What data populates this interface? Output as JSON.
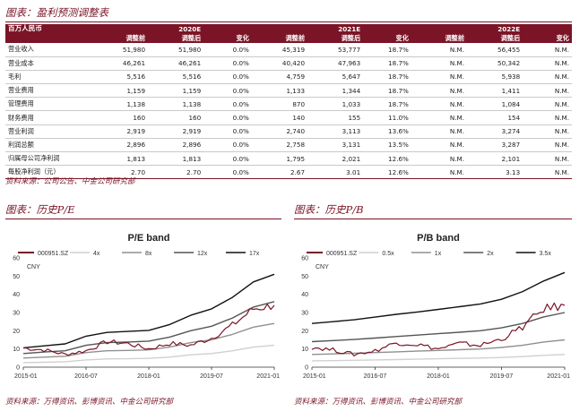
{
  "table_section": {
    "title": "图表：盈利预测调整表",
    "unit_header": "百万人民币",
    "years": [
      "2020E",
      "2021E",
      "2022E"
    ],
    "subheaders": [
      "调整前",
      "调整后",
      "变化",
      "调整前",
      "调整后",
      "变化",
      "调整前",
      "调整后",
      "变化"
    ],
    "rows": [
      {
        "label": "营业收入",
        "values": [
          "51,980",
          "51,980",
          "0.0%",
          "45,319",
          "53,777",
          "18.7%",
          "N.M.",
          "56,455",
          "N.M."
        ]
      },
      {
        "label": "营业成本",
        "values": [
          "46,261",
          "46,261",
          "0.0%",
          "40,420",
          "47,963",
          "18.7%",
          "N.M.",
          "50,342",
          "N.M."
        ]
      },
      {
        "label": "毛利",
        "values": [
          "5,516",
          "5,516",
          "0.0%",
          "4,759",
          "5,647",
          "18.7%",
          "N.M.",
          "5,938",
          "N.M."
        ]
      },
      {
        "label": "营业费用",
        "values": [
          "1,159",
          "1,159",
          "0.0%",
          "1,133",
          "1,344",
          "18.7%",
          "N.M.",
          "1,411",
          "N.M."
        ]
      },
      {
        "label": "管理费用",
        "values": [
          "1,138",
          "1,138",
          "0.0%",
          "870",
          "1,033",
          "18.7%",
          "N.M.",
          "1,084",
          "N.M."
        ]
      },
      {
        "label": "财务费用",
        "values": [
          "160",
          "160",
          "0.0%",
          "140",
          "155",
          "11.0%",
          "N.M.",
          "154",
          "N.M."
        ]
      },
      {
        "label": "营业利润",
        "values": [
          "2,919",
          "2,919",
          "0.0%",
          "2,740",
          "3,113",
          "13.6%",
          "N.M.",
          "3,274",
          "N.M."
        ]
      },
      {
        "label": "利润总额",
        "values": [
          "2,896",
          "2,896",
          "0.0%",
          "2,758",
          "3,131",
          "13.5%",
          "N.M.",
          "3,287",
          "N.M."
        ]
      },
      {
        "label": "归属母公司净利润",
        "values": [
          "1,813",
          "1,813",
          "0.0%",
          "1,795",
          "2,021",
          "12.6%",
          "N.M.",
          "2,101",
          "N.M."
        ]
      },
      {
        "label": "每股净利润（元）",
        "values": [
          "2.70",
          "2.70",
          "0.0%",
          "2.67",
          "3.01",
          "12.6%",
          "N.M.",
          "3.13",
          "N.M."
        ]
      }
    ],
    "source": "资料来源：公司公告、中金公司研究部"
  },
  "pe_section": {
    "title": "图表：历史P/E",
    "source": "资料来源：万得资讯、彭博资讯、中金公司研究部"
  },
  "pb_section": {
    "title": "图表：历史P/B",
    "source": "资料来源：万得资讯、彭博资讯、中金公司研究部"
  },
  "chart_data": [
    {
      "type": "line",
      "title": "P/E band",
      "ylabel": "CNY",
      "ylim": [
        0,
        60
      ],
      "yticks": [
        "0",
        "10",
        "20",
        "30",
        "40",
        "50",
        "60"
      ],
      "xticks": [
        "2015-01",
        "2016-07",
        "2018-01",
        "2019-07",
        "2021-01"
      ],
      "x": [
        0,
        6,
        12,
        18,
        24,
        30,
        36,
        42,
        48,
        54,
        60,
        66,
        72
      ],
      "series": [
        {
          "name": "000951.SZ",
          "color": "#7a1426",
          "values": [
            10.5,
            9.5,
            7,
            9,
            14,
            13,
            10,
            13,
            12,
            16,
            23,
            32,
            34
          ]
        },
        {
          "name": "4x",
          "color": "#d0d0d0",
          "values": [
            2.5,
            2.7,
            3,
            4,
            4.5,
            4.6,
            4.8,
            5.5,
            6.8,
            7.5,
            9,
            11,
            12
          ]
        },
        {
          "name": "8x",
          "color": "#909090",
          "values": [
            5,
            5.5,
            6,
            8,
            9,
            9.2,
            9.5,
            11,
            13.5,
            15,
            18,
            22,
            24
          ]
        },
        {
          "name": "12x",
          "color": "#555555",
          "values": [
            7.5,
            8.3,
            9,
            12,
            13.5,
            13.8,
            14.3,
            16.5,
            20,
            22.5,
            27,
            33,
            36
          ]
        },
        {
          "name": "17x",
          "color": "#111111",
          "values": [
            10.6,
            11.7,
            12.8,
            17,
            19.1,
            19.6,
            20.2,
            23.4,
            28.5,
            32,
            38.3,
            46.8,
            51
          ]
        }
      ]
    },
    {
      "type": "line",
      "title": "P/B band",
      "ylabel": "CNY",
      "ylim": [
        0,
        60
      ],
      "yticks": [
        "0",
        "10",
        "20",
        "30",
        "40",
        "50",
        "60"
      ],
      "xticks": [
        "2015-01",
        "2016-07",
        "2018-01",
        "2019-07",
        "2021-01"
      ],
      "x": [
        0,
        6,
        12,
        18,
        24,
        30,
        36,
        42,
        48,
        54,
        60,
        66,
        72
      ],
      "series": [
        {
          "name": "000951.SZ",
          "color": "#7a1426",
          "values": [
            11,
            9.5,
            7,
            9,
            13.5,
            12.5,
            10,
            13,
            12,
            15.5,
            22,
            32,
            34
          ]
        },
        {
          "name": "0.5x",
          "color": "#d0d0d0",
          "values": [
            3.5,
            3.6,
            3.8,
            4,
            4.2,
            4.4,
            4.6,
            4.8,
            5,
            5.3,
            5.8,
            6.5,
            7
          ]
        },
        {
          "name": "1x",
          "color": "#909090",
          "values": [
            7,
            7.3,
            7.6,
            8,
            8.4,
            8.8,
            9.2,
            9.6,
            10,
            10.8,
            12,
            13.8,
            15
          ]
        },
        {
          "name": "2x",
          "color": "#555555",
          "values": [
            14,
            14.6,
            15.2,
            16,
            16.8,
            17.6,
            18.4,
            19.2,
            20,
            21.6,
            24,
            27.6,
            30
          ]
        },
        {
          "name": "3.5x",
          "color": "#111111",
          "values": [
            24,
            25,
            26,
            27.5,
            29,
            30.3,
            31.7,
            33.2,
            34.7,
            37.3,
            41.5,
            47.3,
            52
          ]
        }
      ]
    }
  ]
}
